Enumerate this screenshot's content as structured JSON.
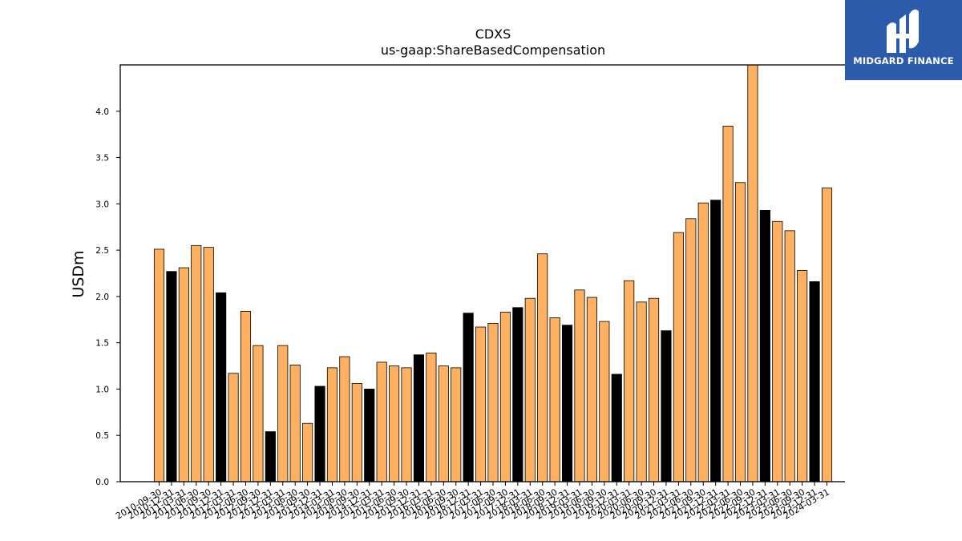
{
  "brand": {
    "name": "MIDGARD FINANCE",
    "background_color": "#2d5bab"
  },
  "colors": {
    "annual": "#000000",
    "quarterly": "#ffb060",
    "edge": "#000000"
  },
  "chart_data": {
    "type": "bar",
    "title": "CDXS",
    "subtitle": "us-gaap:ShareBasedCompensation",
    "xlabel": "",
    "ylabel": "USDm",
    "ylim": [
      0,
      4.5
    ],
    "yticks": [
      0.0,
      0.5,
      1.0,
      1.5,
      2.0,
      2.5,
      3.0,
      3.5,
      4.0
    ],
    "yticklabels": [
      "0.0",
      "0.5",
      "1.0",
      "1.5",
      "2.0",
      "2.5",
      "3.0",
      "3.5",
      "4.0"
    ],
    "grid": false,
    "categories": [
      "2010-09-30",
      "2010-12-31",
      "2011-03-31",
      "2011-06-30",
      "2011-09-30",
      "2011-12-31",
      "2012-03-31",
      "2012-06-30",
      "2012-09-30",
      "2012-12-31",
      "2013-03-31",
      "2013-06-30",
      "2013-09-30",
      "2013-12-31",
      "2014-03-31",
      "2014-06-30",
      "2014-09-30",
      "2014-12-31",
      "2015-03-31",
      "2015-06-30",
      "2015-09-30",
      "2015-12-31",
      "2016-03-31",
      "2016-06-30",
      "2016-09-30",
      "2016-12-31",
      "2017-03-31",
      "2017-06-30",
      "2017-09-30",
      "2017-12-31",
      "2018-03-31",
      "2018-06-30",
      "2018-09-30",
      "2018-12-31",
      "2019-03-31",
      "2019-06-30",
      "2019-09-30",
      "2019-12-31",
      "2020-03-31",
      "2020-06-30",
      "2020-09-30",
      "2020-12-31",
      "2021-03-31",
      "2021-06-30",
      "2021-09-30",
      "2021-12-31",
      "2022-03-31",
      "2022-06-30",
      "2022-09-30",
      "2022-12-31",
      "2023-03-31",
      "2023-06-30",
      "2023-09-30",
      "2023-12-31",
      "2024-03-31"
    ],
    "values": [
      2.51,
      2.27,
      2.31,
      2.55,
      2.53,
      2.04,
      1.17,
      1.84,
      1.47,
      0.54,
      1.47,
      1.26,
      0.63,
      1.03,
      1.23,
      1.35,
      1.06,
      1.0,
      1.29,
      1.25,
      1.23,
      1.37,
      1.39,
      1.25,
      1.23,
      1.82,
      1.67,
      1.71,
      1.83,
      1.88,
      1.98,
      2.46,
      1.77,
      1.69,
      2.07,
      1.99,
      1.73,
      1.16,
      2.17,
      1.94,
      1.98,
      1.63,
      2.69,
      2.84,
      3.01,
      3.04,
      3.84,
      3.23,
      4.5,
      2.93,
      2.81,
      2.71,
      2.28,
      2.16,
      3.17
    ],
    "annual_categories": [
      "2010-12-31",
      "2011-12-31",
      "2012-12-31",
      "2013-12-31",
      "2014-12-31",
      "2015-12-31",
      "2016-12-31",
      "2017-12-31",
      "2018-12-31",
      "2019-12-31",
      "2020-12-31",
      "2021-12-31",
      "2022-12-31",
      "2023-12-31"
    ]
  }
}
